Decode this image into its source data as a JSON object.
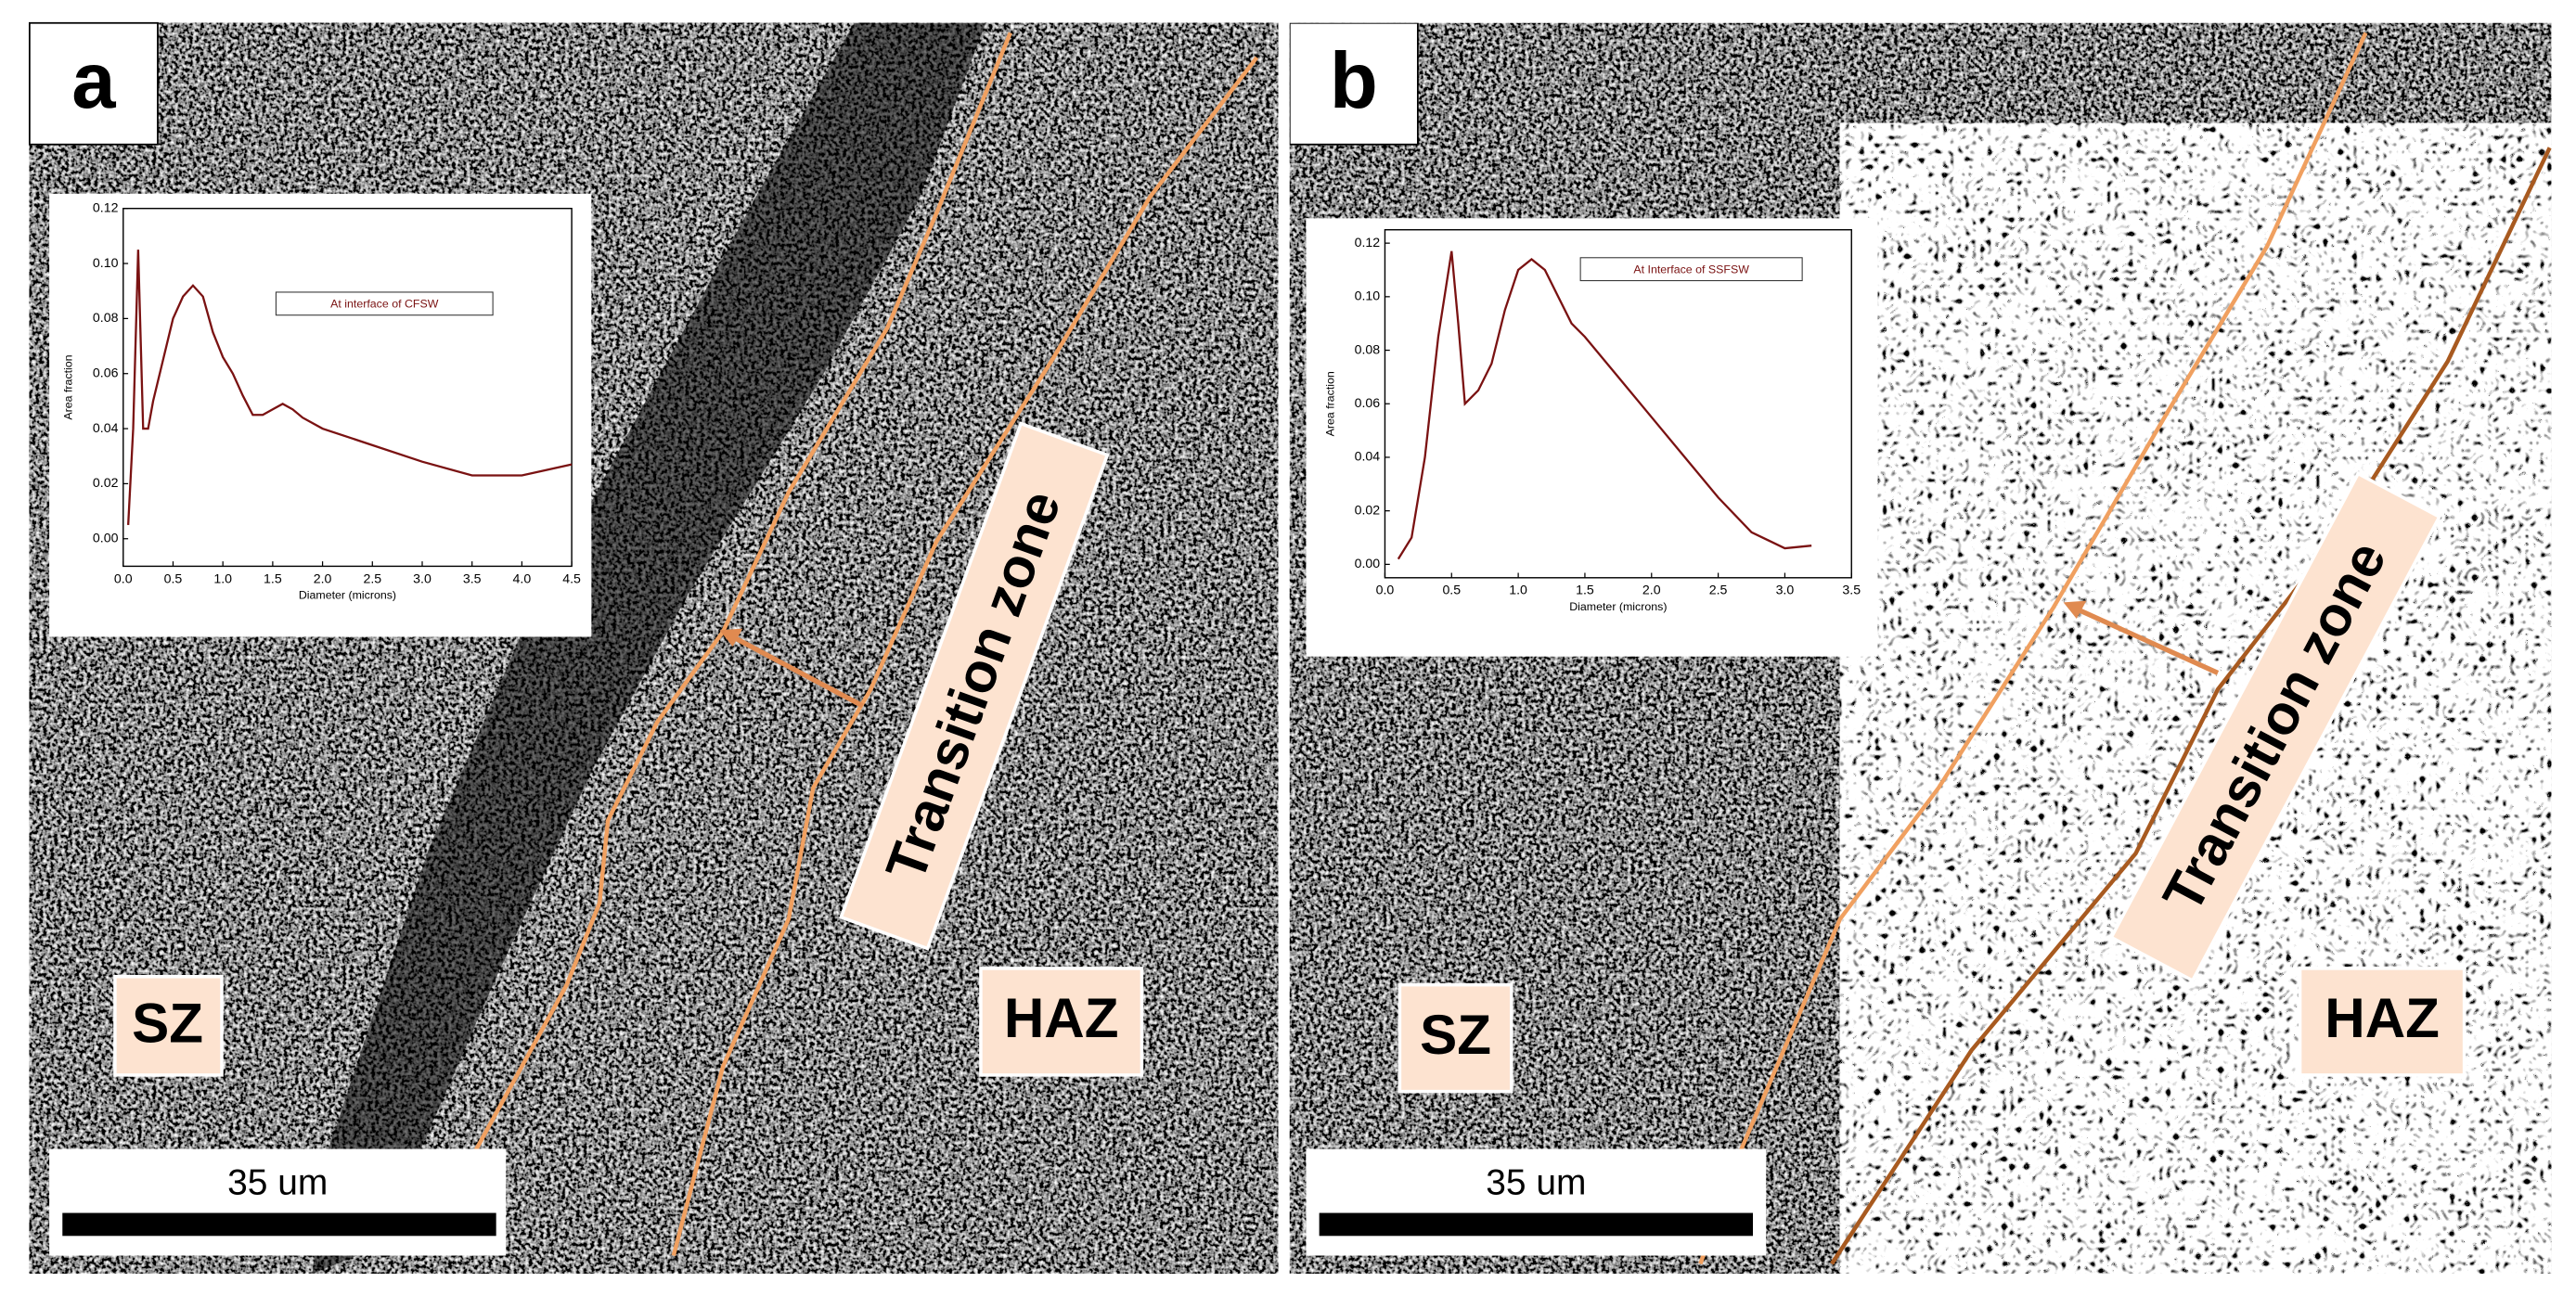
{
  "panels": [
    {
      "label": "a",
      "sz": "SZ",
      "haz": "HAZ",
      "zone": "Transition zone",
      "scale_bar": "35 um"
    },
    {
      "label": "b",
      "sz": "SZ",
      "haz": "HAZ",
      "zone": "Transition zone",
      "scale_bar": "35 um"
    }
  ],
  "chart_data": [
    {
      "type": "line",
      "annotation": "At interface of CFSW",
      "x_label": "Diameter (microns)",
      "y_label": "Area fraction",
      "color": "#7a1212",
      "x": [
        0.05,
        0.1,
        0.15,
        0.2,
        0.25,
        0.3,
        0.4,
        0.5,
        0.6,
        0.7,
        0.8,
        0.9,
        1.0,
        1.1,
        1.2,
        1.3,
        1.4,
        1.5,
        1.6,
        1.7,
        1.8,
        2.0,
        2.5,
        3.0,
        3.5,
        4.0,
        4.5
      ],
      "values": [
        0.005,
        0.04,
        0.105,
        0.04,
        0.04,
        0.05,
        0.065,
        0.08,
        0.088,
        0.092,
        0.088,
        0.075,
        0.066,
        0.06,
        0.052,
        0.045,
        0.045,
        0.047,
        0.049,
        0.047,
        0.044,
        0.04,
        0.034,
        0.028,
        0.023,
        0.023,
        0.027
      ],
      "xlim": [
        0,
        4.5
      ],
      "xticks": [
        {
          "value": 0,
          "label": "0.0"
        },
        0.5,
        {
          "value": 1,
          "label": "1.0"
        },
        1.5,
        {
          "value": 2,
          "label": "2.0"
        },
        2.5,
        {
          "value": 3,
          "label": "3.0"
        },
        3.5,
        {
          "value": 4,
          "label": "4.0"
        },
        4.5
      ],
      "ylim": [
        -0.01,
        0.12
      ],
      "yticks": [
        {
          "value": 0,
          "label": "0.00"
        },
        0.02,
        0.04,
        0.06,
        0.08,
        {
          "value": 0.1,
          "label": "0.10"
        },
        0.12
      ]
    },
    {
      "type": "line",
      "annotation": "At Interface of SSFSW",
      "x_label": "Diameter (microns)",
      "y_label": "Area fraction",
      "color": "#7a1212",
      "x": [
        0.1,
        0.2,
        0.3,
        0.4,
        0.5,
        0.55,
        0.6,
        0.7,
        0.8,
        0.9,
        1.0,
        1.1,
        1.2,
        1.3,
        1.4,
        1.5,
        1.75,
        2.0,
        2.25,
        2.5,
        2.75,
        3.0,
        3.2
      ],
      "values": [
        0.002,
        0.01,
        0.04,
        0.085,
        0.117,
        0.09,
        0.06,
        0.065,
        0.075,
        0.095,
        0.11,
        0.114,
        0.11,
        0.1,
        0.09,
        0.085,
        0.07,
        0.055,
        0.04,
        0.025,
        0.012,
        0.006,
        0.007
      ],
      "xlim": [
        0,
        3.5
      ],
      "xticks": [
        {
          "value": 0,
          "label": "0.0"
        },
        0.5,
        {
          "value": 1,
          "label": "1.0"
        },
        1.5,
        {
          "value": 2,
          "label": "2.0"
        },
        2.5,
        {
          "value": 3,
          "label": "3.0"
        },
        3.5
      ],
      "ylim": [
        -0.005,
        0.125
      ],
      "yticks": [
        {
          "value": 0,
          "label": "0.00"
        },
        0.02,
        0.04,
        0.06,
        0.08,
        {
          "value": 0.1,
          "label": "0.10"
        },
        0.12
      ]
    }
  ]
}
